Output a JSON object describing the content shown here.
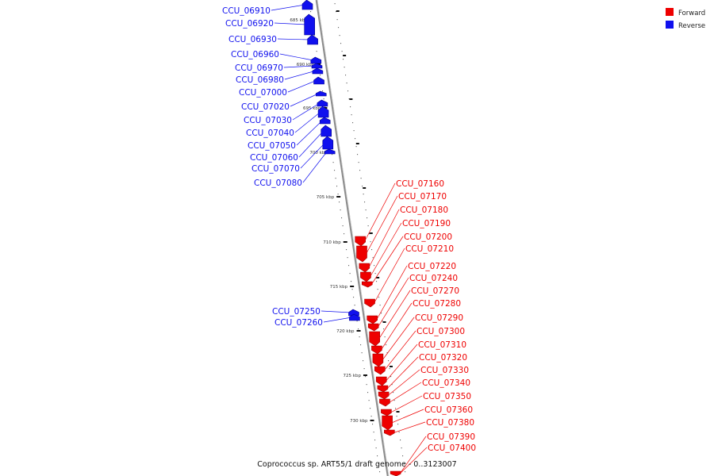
{
  "caption": "Coprococcus sp. ART55/1 draft genome - 0..3123007",
  "legend": [
    {
      "label": "Forward",
      "color": "#ee0000"
    },
    {
      "label": "Reverse",
      "color": "#1010ee"
    }
  ],
  "colors": {
    "forward": "#ee0000",
    "reverse": "#1010ee",
    "backbone": "#888888"
  },
  "ticks": [
    "685 kbp",
    "690 kbp",
    "695 kbp",
    "700 kbp",
    "705 kbp",
    "710 kbp",
    "715 kbp",
    "720 kbp",
    "725 kbp",
    "730 kbp"
  ],
  "reverse_genes": [
    "CCU_06910",
    "CCU_06920",
    "CCU_06930",
    "CCU_06960",
    "CCU_06970",
    "CCU_06980",
    "CCU_07000",
    "CCU_07020",
    "CCU_07030",
    "CCU_07040",
    "CCU_07050",
    "CCU_07060",
    "CCU_07070",
    "CCU_07080",
    "CCU_07250",
    "CCU_07260"
  ],
  "forward_genes": [
    "CCU_07160",
    "CCU_07170",
    "CCU_07180",
    "CCU_07190",
    "CCU_07200",
    "CCU_07210",
    "CCU_07220",
    "CCU_07240",
    "CCU_07270",
    "CCU_07280",
    "CCU_07290",
    "CCU_07300",
    "CCU_07310",
    "CCU_07320",
    "CCU_07330",
    "CCU_07340",
    "CCU_07350",
    "CCU_07360",
    "CCU_07380",
    "CCU_07390",
    "CCU_07400"
  ]
}
